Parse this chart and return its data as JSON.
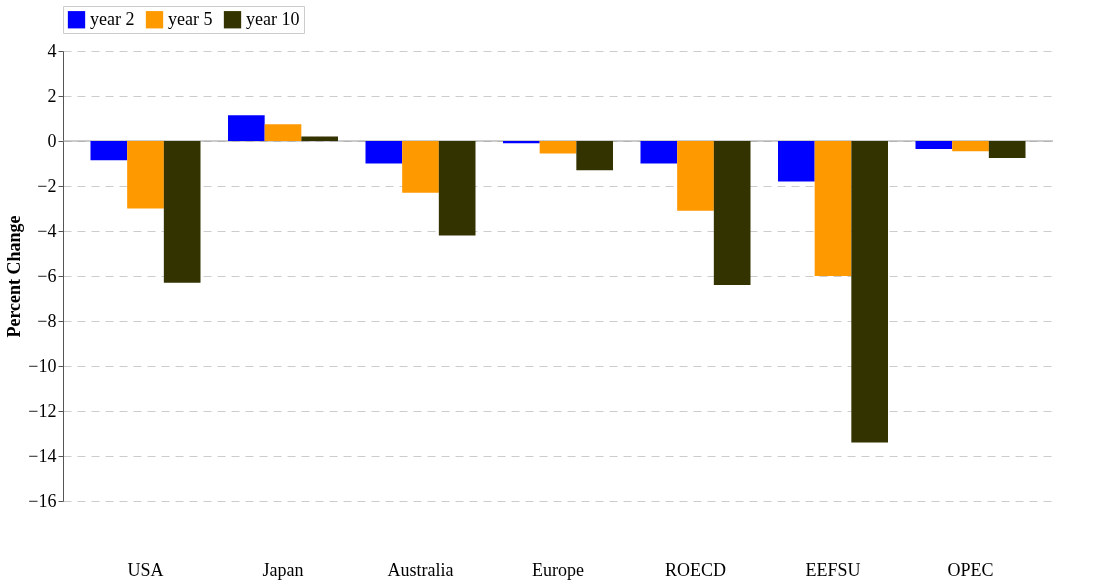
{
  "chart_data": {
    "type": "bar",
    "ylabel": "Percent Change",
    "categories": [
      "USA",
      "Japan",
      "Australia",
      "Europe",
      "ROECD",
      "EEFSU",
      "OPEC"
    ],
    "series": [
      {
        "name": "year 2",
        "color": "#0000ff",
        "values": [
          -0.85,
          1.15,
          -1.0,
          -0.1,
          -1.0,
          -1.8,
          -0.35
        ]
      },
      {
        "name": "year 5",
        "color": "#ff9900",
        "values": [
          -3.0,
          0.75,
          -2.3,
          -0.55,
          -3.1,
          -6.0,
          -0.45
        ]
      },
      {
        "name": "year 10",
        "color": "#333300",
        "values": [
          -6.3,
          0.2,
          -4.2,
          -1.3,
          -6.4,
          -13.4,
          -0.75
        ]
      }
    ],
    "ylim": [
      -16,
      4
    ],
    "yticks": [
      -16,
      -14,
      -12,
      -10,
      -8,
      -6,
      -4,
      -2,
      0,
      2,
      4
    ],
    "grid": "y",
    "legend": "top"
  }
}
